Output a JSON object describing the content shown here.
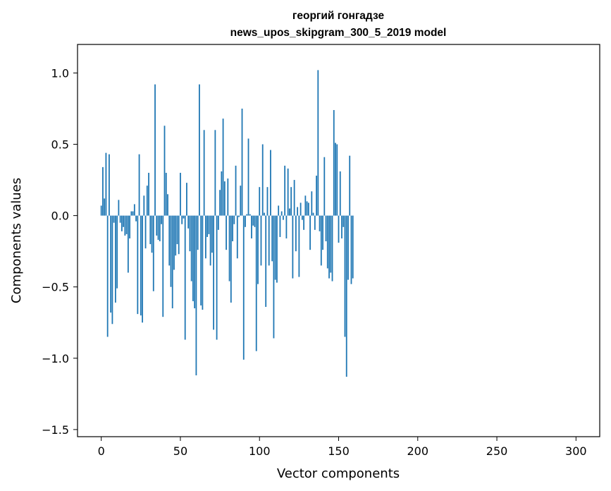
{
  "chart_data": {
    "type": "bar",
    "title": "георгий гонгадзе",
    "subtitle": "news_upos_skipgram_300_5_2019 model",
    "xlabel": "Vector components",
    "ylabel": "Components values",
    "xlim": [
      -15,
      315
    ],
    "ylim": [
      -1.55,
      1.2
    ],
    "x_ticks": [
      0,
      50,
      100,
      150,
      200,
      250,
      300
    ],
    "x_tick_labels": [
      "0",
      "50",
      "100",
      "150",
      "200",
      "250",
      "300"
    ],
    "y_ticks": [
      -1.5,
      -1.0,
      -0.5,
      0.0,
      0.5,
      1.0
    ],
    "y_tick_labels": [
      "−1.5",
      "−1.0",
      "−0.5",
      "0.0",
      "0.5",
      "1.0"
    ],
    "bar_color": "#1f77b4",
    "x_start": 0,
    "values": [
      0.07,
      0.34,
      0.12,
      0.44,
      -0.85,
      0.43,
      -0.68,
      -0.76,
      -0.05,
      -0.61,
      -0.51,
      0.11,
      -0.05,
      -0.11,
      -0.08,
      -0.14,
      -0.13,
      -0.4,
      -0.16,
      0.03,
      0.03,
      0.08,
      -0.04,
      -0.69,
      0.43,
      -0.7,
      -0.75,
      0.14,
      -0.23,
      0.21,
      0.3,
      -0.2,
      -0.26,
      -0.53,
      0.92,
      -0.14,
      -0.17,
      -0.18,
      -0.06,
      -0.71,
      0.63,
      0.3,
      0.15,
      -0.35,
      -0.5,
      -0.65,
      -0.38,
      -0.28,
      -0.2,
      -0.27,
      0.3,
      -0.06,
      -0.02,
      -0.87,
      0.23,
      -0.09,
      -0.25,
      -0.46,
      -0.6,
      -0.65,
      -1.12,
      -0.24,
      0.92,
      -0.63,
      -0.66,
      0.6,
      -0.3,
      -0.15,
      -0.13,
      -0.35,
      -0.26,
      -0.8,
      0.6,
      -0.87,
      -0.1,
      0.18,
      0.31,
      0.68,
      0.24,
      -0.24,
      0.26,
      -0.46,
      -0.61,
      -0.18,
      -0.06,
      0.35,
      -0.3,
      -0.01,
      0.21,
      0.75,
      -1.01,
      -0.08,
      0.01,
      0.54,
      0.01,
      -0.16,
      -0.07,
      -0.08,
      -0.95,
      -0.48,
      0.2,
      -0.35,
      0.5,
      0.02,
      -0.64,
      0.2,
      -0.35,
      0.46,
      -0.32,
      -0.86,
      -0.45,
      -0.47,
      0.07,
      -0.15,
      0.03,
      -0.03,
      0.35,
      -0.16,
      0.33,
      0.05,
      0.2,
      -0.44,
      0.25,
      -0.25,
      0.06,
      -0.43,
      0.09,
      -0.03,
      -0.1,
      0.14,
      0.1,
      0.09,
      -0.24,
      0.17,
      0.02,
      -0.1,
      0.28,
      1.02,
      -0.11,
      -0.35,
      -0.24,
      0.41,
      -0.18,
      -0.37,
      -0.44,
      -0.4,
      -0.46,
      0.74,
      0.51,
      0.5,
      -0.19,
      0.31,
      -0.16,
      -0.08,
      -0.85,
      -1.13,
      -0.45,
      0.42,
      -0.48,
      -0.44
    ]
  }
}
